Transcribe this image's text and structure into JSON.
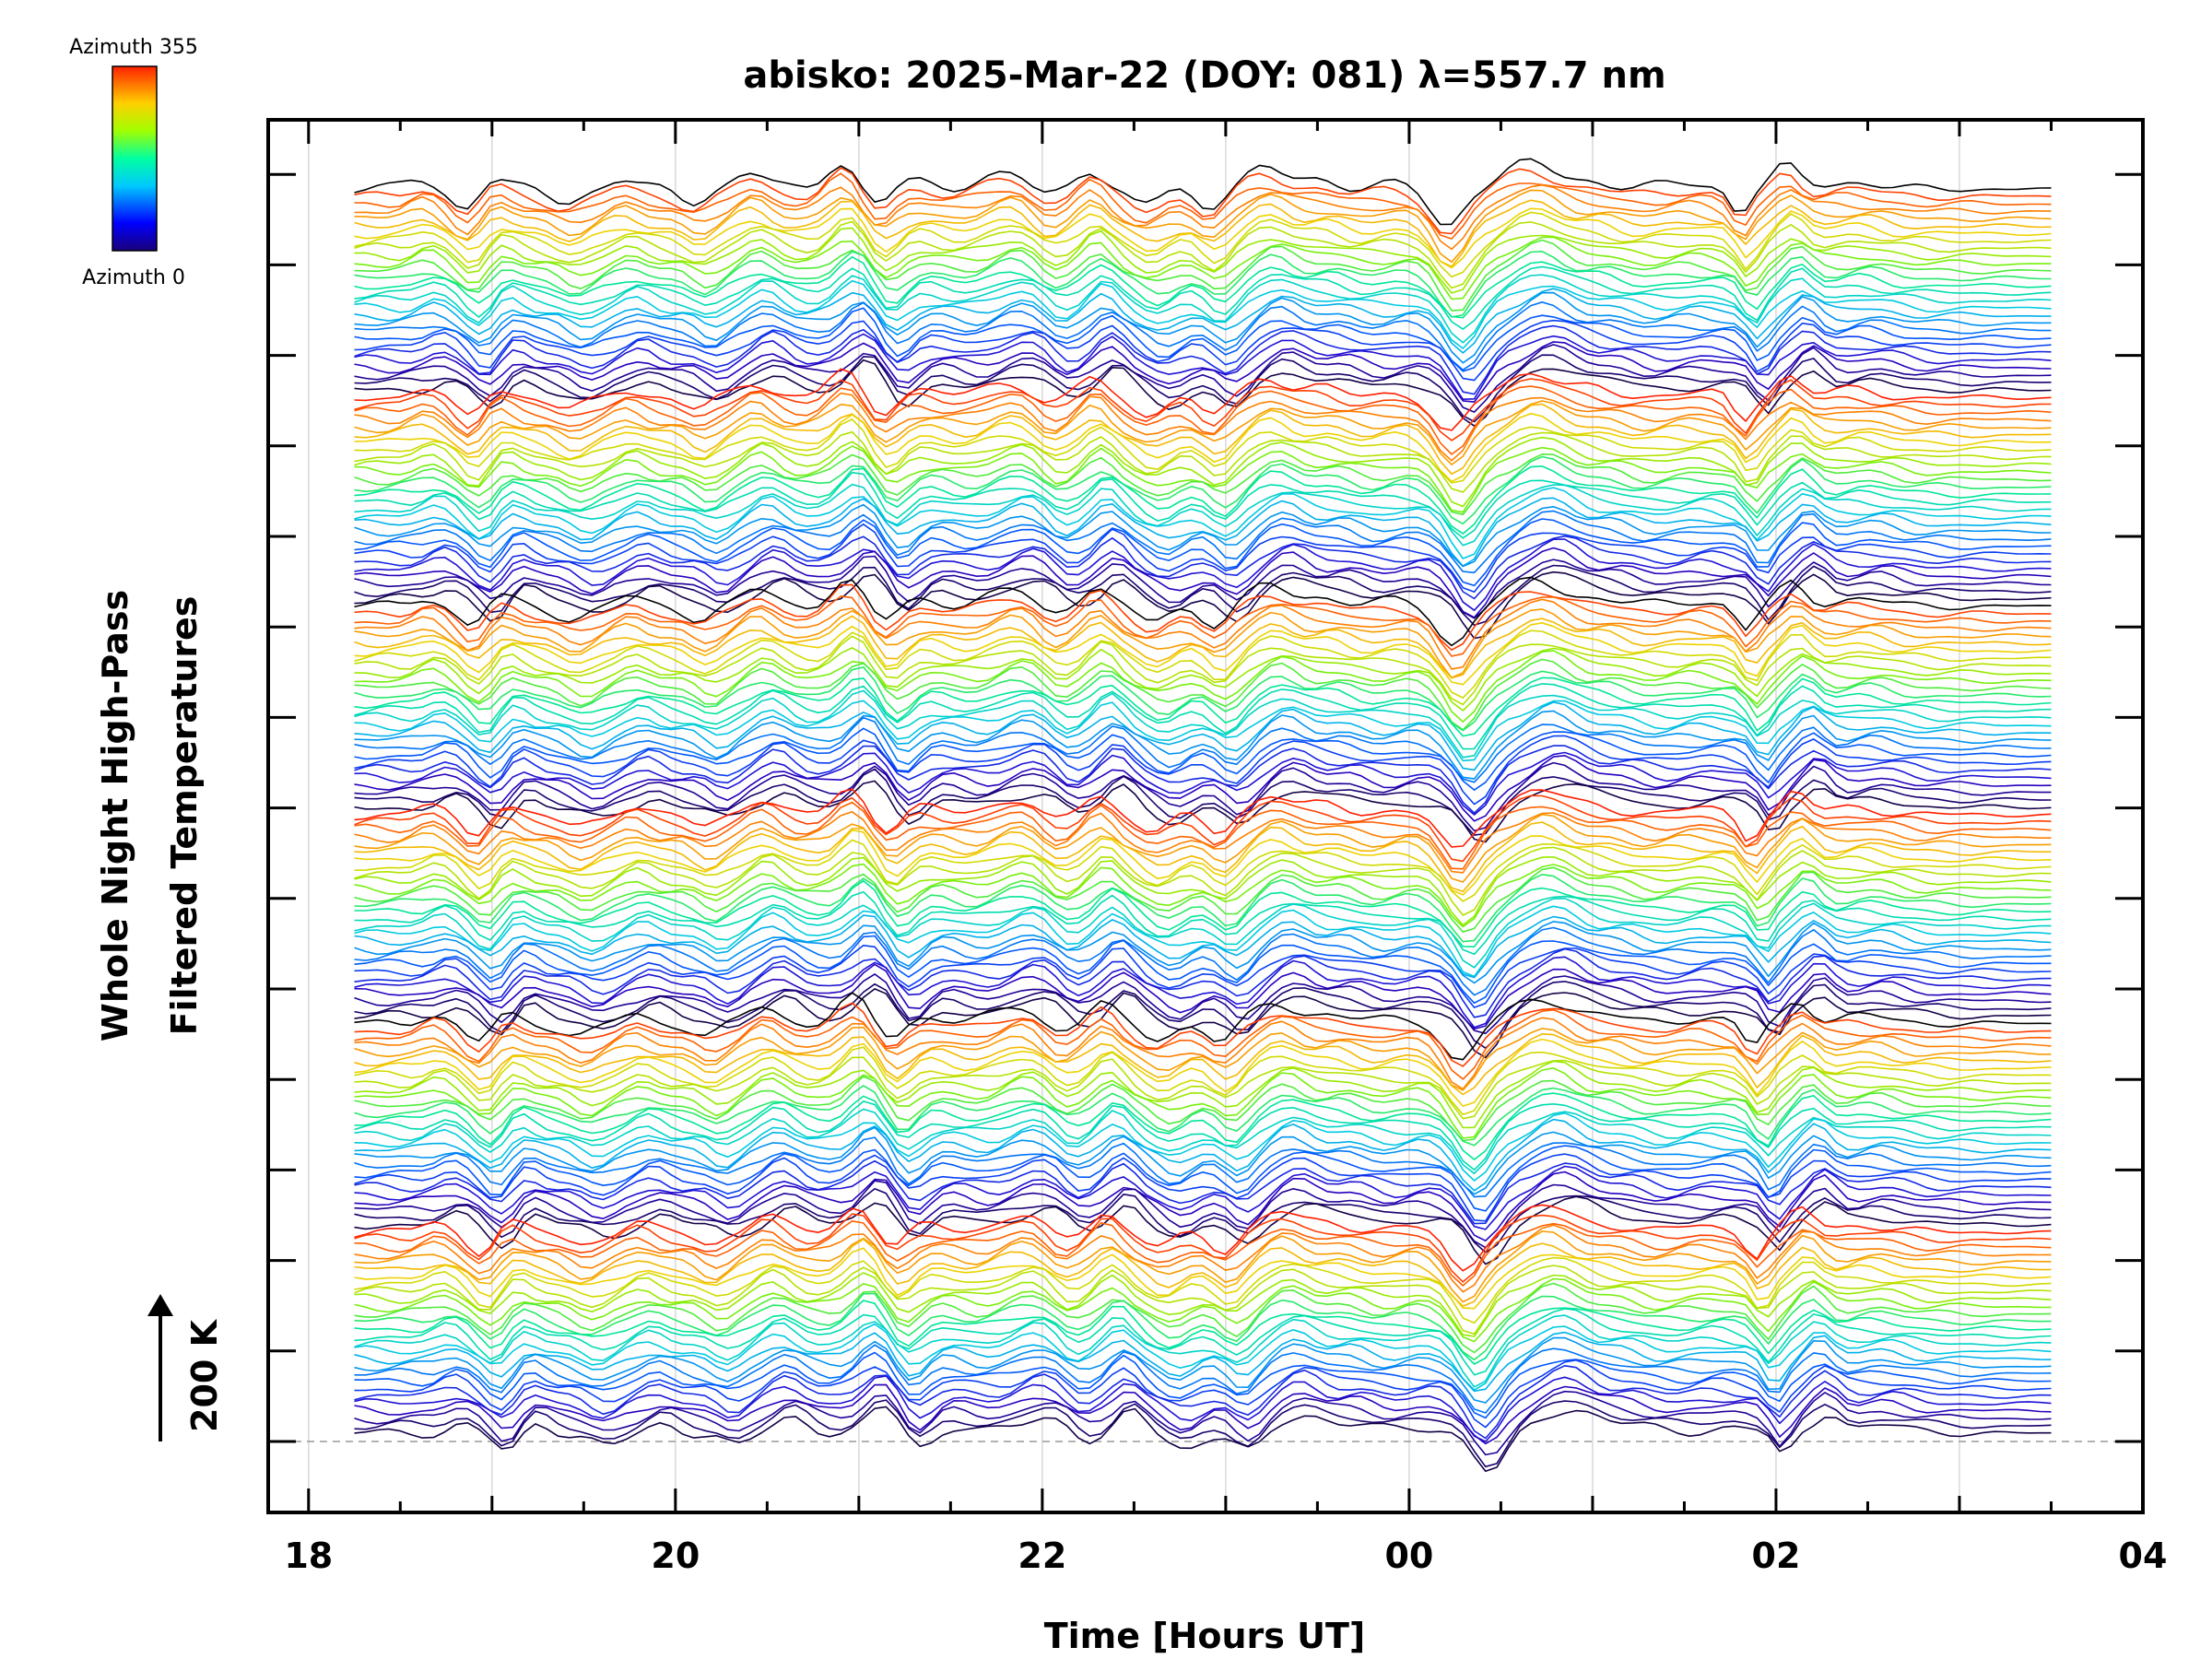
{
  "chart_data": {
    "type": "line",
    "title": "abisko: 2025-Mar-22 (DOY: 081) λ=557.7 nm",
    "xlabel": "Time [Hours UT]",
    "ylabel_line1": "Whole Night High-Pass",
    "ylabel_line2": "Filtered Temperatures",
    "x_tick_labels": [
      "18",
      "20",
      "22",
      "00",
      "02",
      "04"
    ],
    "x_tick_hours": [
      18,
      20,
      22,
      24,
      26,
      28
    ],
    "xlim": [
      17.78,
      28.0
    ],
    "time_range": [
      18.25,
      27.5
    ],
    "grid": true,
    "colorbar": {
      "label_top": "Azimuth 355",
      "label_bottom": "Azimuth 0",
      "colormap": "rainbow"
    },
    "scale_bar_label": "200 K",
    "series_count": 168,
    "offset_groups": 6,
    "azimuths_per_group": 28,
    "baseline_series": 0
  }
}
